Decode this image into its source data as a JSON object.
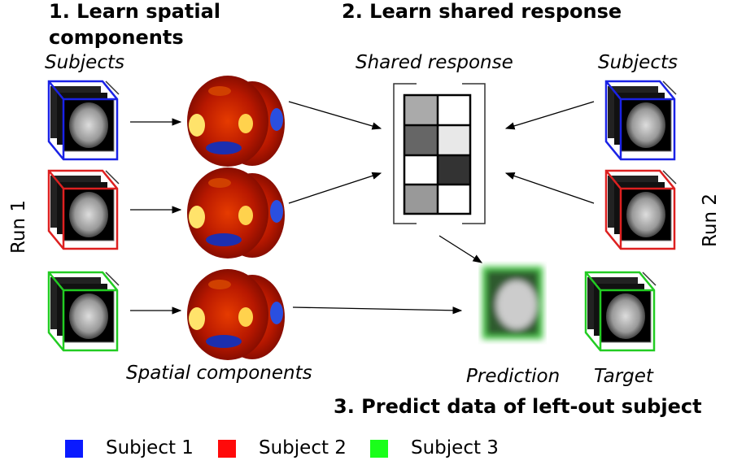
{
  "step1": {
    "title": "1. Learn spatial components",
    "subjects_label": "Subjects",
    "components_label": "Spatial components",
    "run_label": "Run 1"
  },
  "step2": {
    "title": "2. Learn shared response",
    "shared_label": "Shared response",
    "subjects_label": "Subjects",
    "run_label": "Run 2"
  },
  "step3": {
    "title": "3. Predict data of left-out subject",
    "prediction_label": "Prediction",
    "target_label": "Target"
  },
  "legend": [
    "Subject 1",
    "Subject 2",
    "Subject 3"
  ]
}
